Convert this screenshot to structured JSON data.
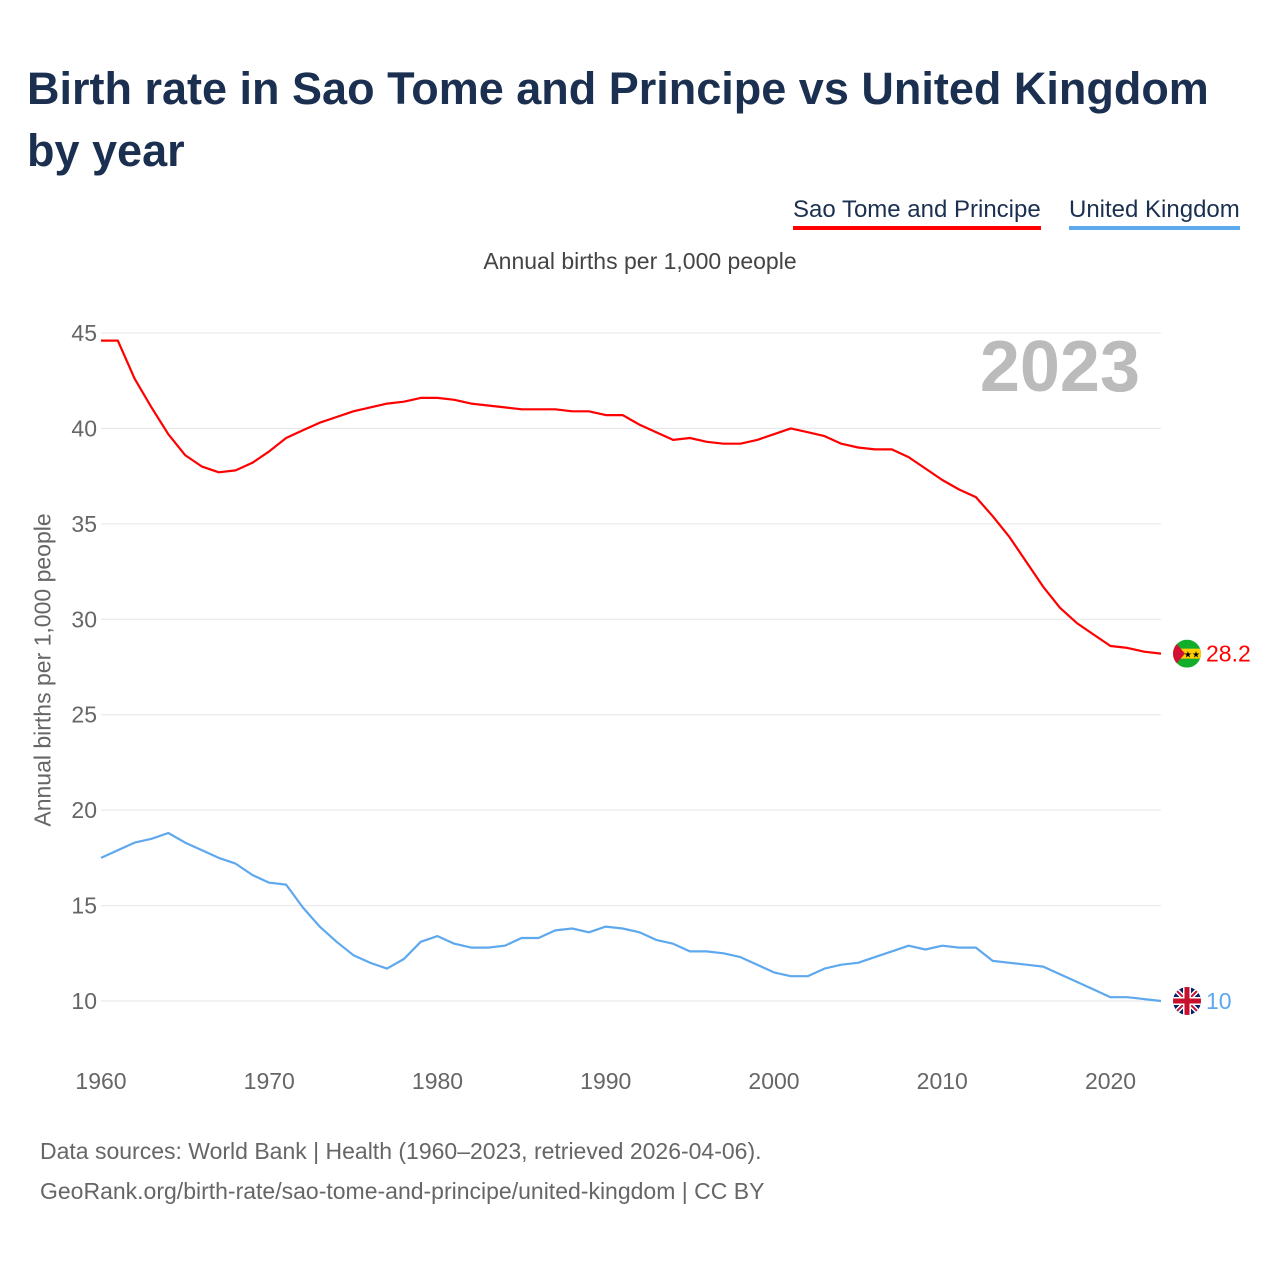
{
  "title": "Birth rate in Sao Tome and Principe vs United Kingdom by year",
  "footer": {
    "line1": "Data sources: World Bank | Health (1960–2023, retrieved 2026-04-06).",
    "line2": "GeoRank.org/birth-rate/sao-tome-and-principe/united-kingdom | CC BY"
  },
  "chart_data": {
    "type": "line",
    "title": "Birth rate in Sao Tome and Principe vs United Kingdom by year",
    "subtitle": "Annual births per 1,000 people",
    "ylabel": "Annual births per 1,000 people",
    "xlabel": "",
    "year_label": "2023",
    "ylim": [
      7,
      45
    ],
    "xlim": [
      1960,
      2023
    ],
    "yticks": [
      10,
      15,
      20,
      25,
      30,
      35,
      40,
      45
    ],
    "xticks": [
      1960,
      1970,
      1980,
      1990,
      2000,
      2010,
      2020
    ],
    "grid": true,
    "legend_position": "top-right",
    "x": [
      1960,
      1961,
      1962,
      1963,
      1964,
      1965,
      1966,
      1967,
      1968,
      1969,
      1970,
      1971,
      1972,
      1973,
      1974,
      1975,
      1976,
      1977,
      1978,
      1979,
      1980,
      1981,
      1982,
      1983,
      1984,
      1985,
      1986,
      1987,
      1988,
      1989,
      1990,
      1991,
      1992,
      1993,
      1994,
      1995,
      1996,
      1997,
      1998,
      1999,
      2000,
      2001,
      2002,
      2003,
      2004,
      2005,
      2006,
      2007,
      2008,
      2009,
      2010,
      2011,
      2012,
      2013,
      2014,
      2015,
      2016,
      2017,
      2018,
      2019,
      2020,
      2021,
      2022,
      2023
    ],
    "series": [
      {
        "name": "Sao Tome and Principe",
        "color": "#ff0000",
        "end_label": "28.2",
        "values": [
          44.6,
          44.6,
          42.6,
          41.1,
          39.7,
          38.6,
          38.0,
          37.7,
          37.8,
          38.2,
          38.8,
          39.5,
          39.9,
          40.3,
          40.6,
          40.9,
          41.1,
          41.3,
          41.4,
          41.6,
          41.6,
          41.5,
          41.3,
          41.2,
          41.1,
          41.0,
          41.0,
          41.0,
          40.9,
          40.9,
          40.7,
          40.7,
          40.2,
          39.8,
          39.4,
          39.5,
          39.3,
          39.2,
          39.2,
          39.4,
          39.7,
          40.0,
          39.8,
          39.6,
          39.2,
          39.0,
          38.9,
          38.9,
          38.5,
          37.9,
          37.3,
          36.8,
          36.4,
          35.4,
          34.3,
          33.0,
          31.7,
          30.6,
          29.8,
          29.2,
          28.6,
          28.5,
          28.3,
          28.2
        ]
      },
      {
        "name": "United Kingdom",
        "color": "#5ea8ee",
        "end_label": "10",
        "values": [
          17.5,
          17.9,
          18.3,
          18.5,
          18.8,
          18.3,
          17.9,
          17.5,
          17.2,
          16.6,
          16.2,
          16.1,
          14.9,
          13.9,
          13.1,
          12.4,
          12.0,
          11.7,
          12.2,
          13.1,
          13.4,
          13.0,
          12.8,
          12.8,
          12.9,
          13.3,
          13.3,
          13.7,
          13.8,
          13.6,
          13.9,
          13.8,
          13.6,
          13.2,
          13.0,
          12.6,
          12.6,
          12.5,
          12.3,
          11.9,
          11.5,
          11.3,
          11.3,
          11.7,
          11.9,
          12.0,
          12.3,
          12.6,
          12.9,
          12.7,
          12.9,
          12.8,
          12.8,
          12.1,
          12.0,
          11.9,
          11.8,
          11.4,
          11.0,
          10.6,
          10.2,
          10.2,
          10.1,
          10.0
        ]
      }
    ]
  }
}
